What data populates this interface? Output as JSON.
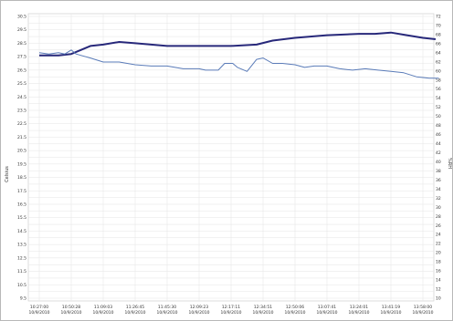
{
  "chart_data": {
    "type": "line",
    "title": "",
    "ylabel": "Celsius",
    "y2label": "%RH",
    "ylim": [
      9.5,
      30.5
    ],
    "y2lim": [
      10,
      72
    ],
    "grid": true,
    "legend": "none",
    "y_ticks": [
      "30.5",
      "30",
      "29.5",
      "29",
      "28.5",
      "28",
      "27.5",
      "27",
      "26.5",
      "26",
      "25.5",
      "25",
      "24.5",
      "24",
      "23.5",
      "23",
      "22.5",
      "22",
      "21.5",
      "21",
      "20.5",
      "20",
      "19.5",
      "19",
      "18.5",
      "18",
      "17.5",
      "17",
      "16.5",
      "16",
      "15.5",
      "15",
      "14.5",
      "14",
      "13.5",
      "13",
      "12.5",
      "12",
      "11.5",
      "11",
      "10.5",
      "10",
      "9.5"
    ],
    "y_tick_labels_shown": [
      "30.5",
      "30",
      "29.5",
      "29",
      "28.5",
      "28",
      "27.5",
      "27",
      "26.5",
      "26",
      "25.5",
      "25",
      "24.5",
      "24",
      "23.5",
      "23",
      "22.5",
      "22",
      "21.5",
      "21",
      "20.5",
      "20",
      "19.5",
      "19",
      "18.5",
      "18",
      "17.5",
      "17",
      "16.5",
      "16",
      "15.5",
      "15",
      "14.5",
      "14",
      "13.5",
      "13",
      "12.5",
      "12",
      "11.5",
      "11",
      "10.5",
      "10",
      "9.5"
    ],
    "y2_ticks": [
      "72",
      "70",
      "68",
      "66",
      "64",
      "62",
      "60",
      "58",
      "56",
      "54",
      "52",
      "50",
      "48",
      "46",
      "44",
      "42",
      "40",
      "38",
      "36",
      "34",
      "32",
      "30",
      "28",
      "26",
      "24",
      "22",
      "20",
      "18",
      "16",
      "14",
      "12",
      "10"
    ],
    "x_ticks": [
      {
        "time": "10:27:00",
        "date": "10/9/2010"
      },
      {
        "time": "10:50:28",
        "date": "10/9/2010"
      },
      {
        "time": "11:09:03",
        "date": "10/9/2010"
      },
      {
        "time": "11:26:45",
        "date": "10/9/2010"
      },
      {
        "time": "11:45:30",
        "date": "10/9/2010"
      },
      {
        "time": "12:09:23",
        "date": "10/9/2010"
      },
      {
        "time": "12:17:11",
        "date": "10/9/2010"
      },
      {
        "time": "12:34:51",
        "date": "10/9/2010"
      },
      {
        "time": "12:50:06",
        "date": "10/9/2010"
      },
      {
        "time": "13:07:41",
        "date": "10/9/2010"
      },
      {
        "time": "13:24:01",
        "date": "10/9/2010"
      },
      {
        "time": "13:41:19",
        "date": "10/9/2010"
      },
      {
        "time": "13:58:00",
        "date": "10/9/2010"
      }
    ],
    "series": [
      {
        "color": "#27287a",
        "axis": "left",
        "x": [
          0,
          0.6,
          1,
          1.3,
          1.6,
          2,
          2.5,
          3,
          4,
          5,
          6,
          6.8,
          7.3,
          8,
          9,
          10,
          10.5,
          11,
          11.5,
          12,
          12.4
        ],
        "values": [
          27.6,
          27.6,
          27.7,
          28.0,
          28.3,
          28.4,
          28.6,
          28.5,
          28.3,
          28.3,
          28.3,
          28.4,
          28.7,
          28.9,
          29.1,
          29.2,
          29.2,
          29.3,
          29.1,
          28.9,
          28.8
        ]
      },
      {
        "color": "#5a7bb8",
        "axis": "left",
        "x": [
          0,
          0.3,
          0.6,
          0.8,
          1,
          1.15,
          1.3,
          1.6,
          2,
          2.5,
          3,
          3.5,
          4,
          4.5,
          5,
          5.2,
          5.6,
          5.8,
          6.05,
          6.2,
          6.5,
          6.8,
          7,
          7.3,
          7.6,
          8,
          8.3,
          8.6,
          9,
          9.4,
          9.8,
          10.2,
          10.6,
          11,
          11.4,
          11.8,
          12.2,
          12.5
        ],
        "values": [
          27.8,
          27.7,
          27.8,
          27.7,
          28.0,
          27.7,
          27.6,
          27.4,
          27.1,
          27.1,
          26.9,
          26.8,
          26.8,
          26.6,
          26.6,
          26.5,
          26.5,
          27.0,
          27.0,
          26.7,
          26.4,
          27.3,
          27.4,
          27.0,
          27.0,
          26.9,
          26.7,
          26.8,
          26.8,
          26.6,
          26.5,
          26.6,
          26.5,
          26.4,
          26.3,
          26.0,
          25.9,
          25.9
        ]
      }
    ]
  }
}
